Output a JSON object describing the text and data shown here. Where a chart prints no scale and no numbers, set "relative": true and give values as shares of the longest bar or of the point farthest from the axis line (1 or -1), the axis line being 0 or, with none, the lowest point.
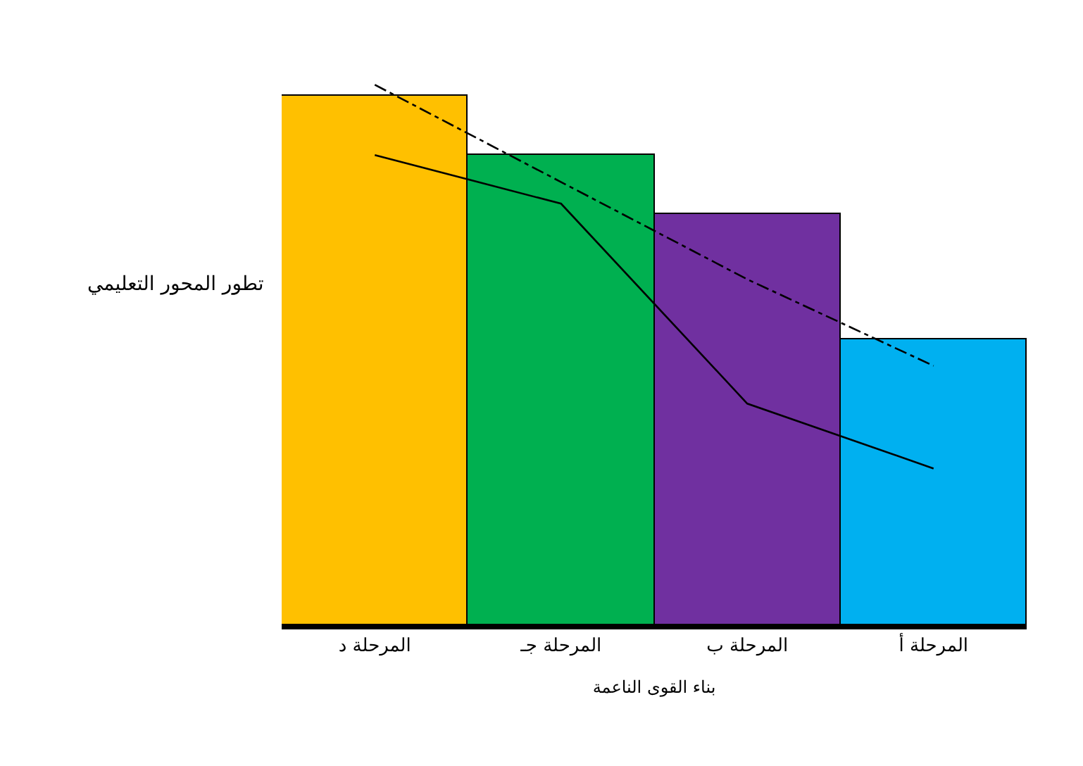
{
  "chart_data": {
    "type": "bar",
    "relative": true,
    "xlabel": "بناء القوى الناعمة",
    "ylabel": "تطور المحور التعليمي",
    "categories": [
      "المرحلة د",
      "المرحلة جـ",
      "المرحلة ب",
      "المرحلة أ"
    ],
    "series": [
      {
        "colors": [
          "#ffc000",
          "#00b050",
          "#7030a0",
          "#00b0f0"
        ],
        "values": [
          0.98,
          0.87,
          0.76,
          0.53
        ]
      },
      {
        "type": "line",
        "color": "#000000",
        "line_style": "dashed",
        "values": [
          1,
          0.82,
          0.64,
          0.48
        ]
      },
      {
        "type": "line",
        "color": "#000000",
        "line_style": "solid",
        "values": [
          0.87,
          0.78,
          0.41,
          0.29
        ]
      }
    ],
    "marker": "none"
  }
}
